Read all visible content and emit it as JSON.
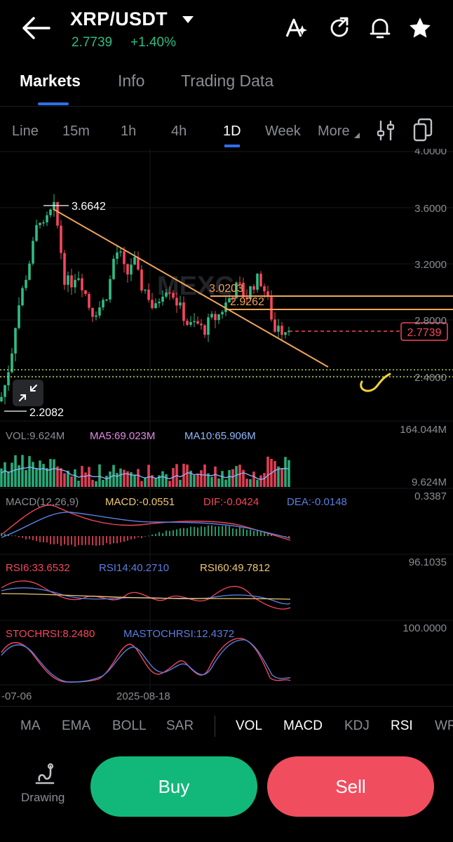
{
  "header": {
    "pair": "XRP/USDT",
    "price": "2.7739",
    "change": "+1.40%",
    "icons": [
      "back-arrow-icon",
      "caret-down-icon",
      "font-style-icon",
      "refresh-icon",
      "bell-icon",
      "star-icon"
    ]
  },
  "tabs": [
    {
      "label": "Markets",
      "active": true
    },
    {
      "label": "Info",
      "active": false
    },
    {
      "label": "Trading Data",
      "active": false
    }
  ],
  "timeframes": [
    {
      "label": "Line",
      "active": false
    },
    {
      "label": "15m",
      "active": false
    },
    {
      "label": "1h",
      "active": false
    },
    {
      "label": "4h",
      "active": false
    },
    {
      "label": "1D",
      "active": true
    },
    {
      "label": "Week",
      "active": false
    },
    {
      "label": "More",
      "active": false
    }
  ],
  "chart": {
    "watermark": "MEXC",
    "high_label": "3.6642",
    "low_label": "2.2082",
    "level_1": "3.0203",
    "level_2": "2.9262",
    "current_price": "2.7739",
    "y_ticks": [
      "4.0000",
      "3.6000",
      "3.2000",
      "2.8000",
      "2.4000"
    ],
    "x_ticks": [
      "-07-06",
      "2025-08-18"
    ],
    "vol": {
      "vol": "VOL:9.624M",
      "ma5": "MA5:69.023M",
      "ma10": "MA10:65.906M",
      "top": "164.044M",
      "bottom": "9.624M"
    },
    "macd": {
      "title": "MACD(12,26,9)",
      "macd": "MACD:-0.0551",
      "dif": "DIF:-0.0424",
      "dea": "DEA:-0.0148",
      "top": "0.3387"
    },
    "rsi": {
      "rsi6": "RSI6:33.6532",
      "rsi14": "RSI14:40.2710",
      "rsi60": "RSI60:49.7812",
      "top": "96.1035"
    },
    "stochrsi": {
      "stoch": "STOCHRSI:8.2480",
      "ma": "MASTOCHRSI:12.4372",
      "top": "100.0000"
    },
    "colors": {
      "up": "#2ebd85",
      "down": "#f6465d",
      "trend": "#f0a55a",
      "ma5": "#e08be3",
      "ma10": "#8fb7ff",
      "dea": "#5b7fe0",
      "rsi6": "#f6465d"
    }
  },
  "indicators": [
    {
      "label": "MA",
      "active": false
    },
    {
      "label": "EMA",
      "active": false
    },
    {
      "label": "BOLL",
      "active": false
    },
    {
      "label": "SAR",
      "active": false
    },
    {
      "label": "VOL",
      "active": true
    },
    {
      "label": "MACD",
      "active": true
    },
    {
      "label": "KDJ",
      "active": false
    },
    {
      "label": "RSI",
      "active": true
    },
    {
      "label": "WR",
      "active": false
    }
  ],
  "footer": {
    "drawing": "Drawing",
    "buy": "Buy",
    "sell": "Sell"
  }
}
